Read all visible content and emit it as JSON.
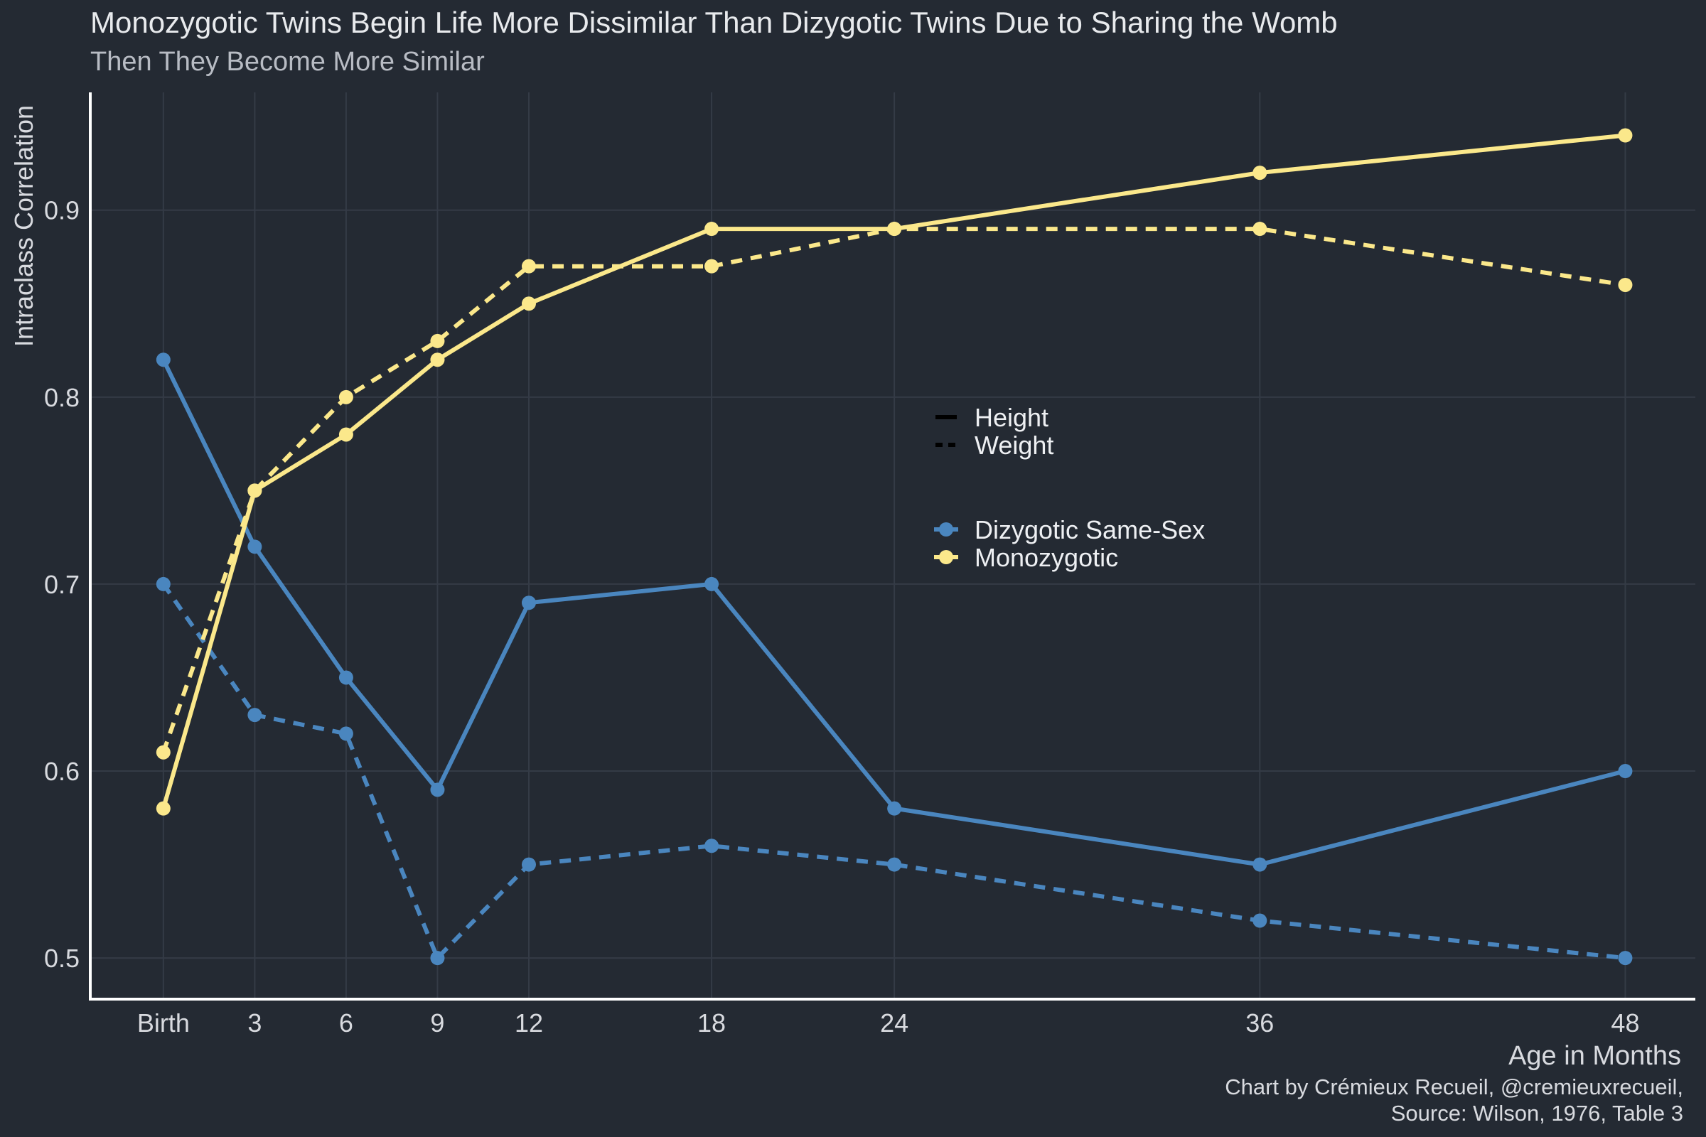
{
  "title": "Monozygotic Twins Begin Life More Dissimilar Than Dizygotic Twins Due to Sharing the Womb",
  "subtitle": "Then They Become More Similar",
  "caption_line1": "Chart by Crémieux Recueil, @cremieuxrecueil,",
  "caption_line2": "Source: Wilson, 1976, Table 3",
  "colors": {
    "background": "#242a33",
    "grid": "#343b46",
    "axis": "#ffffff",
    "text": "#d8dadf",
    "dizygotic": "#4a86bf",
    "monozygotic": "#fbe88b"
  },
  "chart_data": {
    "type": "line",
    "xlabel": "Age in Months",
    "ylabel": "Intraclass Correlation",
    "x": [
      0,
      3,
      6,
      9,
      12,
      18,
      24,
      36,
      48
    ],
    "x_tick_labels": [
      "Birth",
      "3",
      "6",
      "9",
      "12",
      "18",
      "24",
      "36",
      "48"
    ],
    "xlim": [
      -2.4,
      50.3
    ],
    "ylim": [
      0.478,
      0.963
    ],
    "y_ticks": [
      0.5,
      0.6,
      0.7,
      0.8,
      0.9
    ],
    "y_tick_labels": [
      "0.5",
      "0.6",
      "0.7",
      "0.8",
      "0.9"
    ],
    "grid": true,
    "legend_placement": "center",
    "legend_linetype": [
      {
        "label": "Height",
        "dash": "solid"
      },
      {
        "label": "Weight",
        "dash": "dashed"
      }
    ],
    "legend_color": [
      {
        "label": "Dizygotic Same-Sex",
        "color": "#4a86bf"
      },
      {
        "label": "Monozygotic",
        "color": "#fbe88b"
      }
    ],
    "series": [
      {
        "group": "Dizygotic Same-Sex",
        "measure": "Height",
        "color": "#4a86bf",
        "dash": "solid",
        "values": [
          0.82,
          0.72,
          0.65,
          0.59,
          0.69,
          0.7,
          0.58,
          0.55,
          0.6
        ]
      },
      {
        "group": "Dizygotic Same-Sex",
        "measure": "Weight",
        "color": "#4a86bf",
        "dash": "dashed",
        "values": [
          0.7,
          0.63,
          0.62,
          0.5,
          0.55,
          0.56,
          0.55,
          0.52,
          0.5
        ]
      },
      {
        "group": "Monozygotic",
        "measure": "Height",
        "color": "#fbe88b",
        "dash": "solid",
        "values": [
          0.58,
          0.75,
          0.78,
          0.82,
          0.85,
          0.89,
          0.89,
          0.92,
          0.94
        ]
      },
      {
        "group": "Monozygotic",
        "measure": "Weight",
        "color": "#fbe88b",
        "dash": "dashed",
        "values": [
          0.61,
          0.75,
          0.8,
          0.83,
          0.87,
          0.87,
          0.89,
          0.89,
          0.86
        ]
      }
    ]
  }
}
